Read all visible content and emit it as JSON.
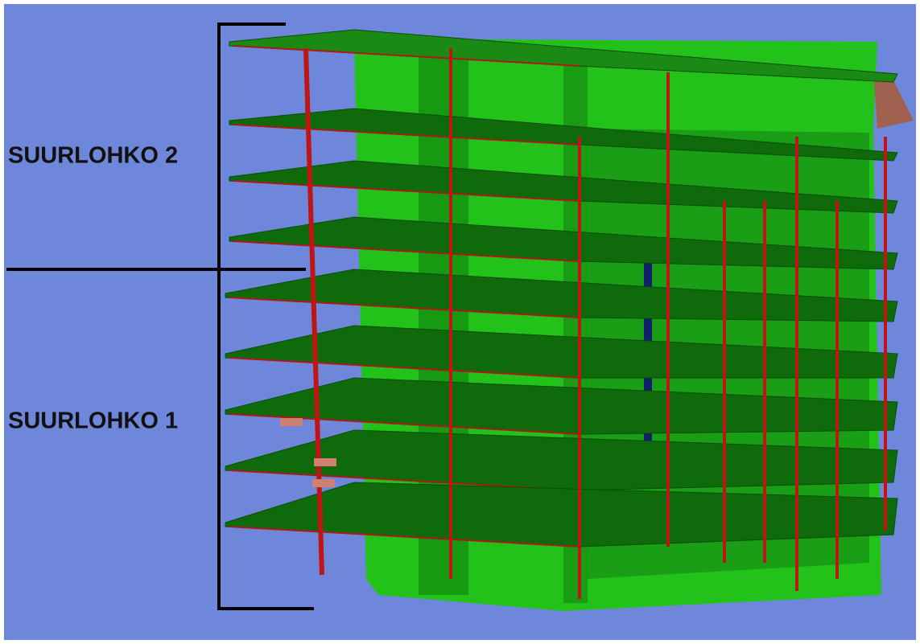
{
  "labels": {
    "upper": "SUURLOHKO 2",
    "lower": "SUURLOHKO 1"
  }
}
